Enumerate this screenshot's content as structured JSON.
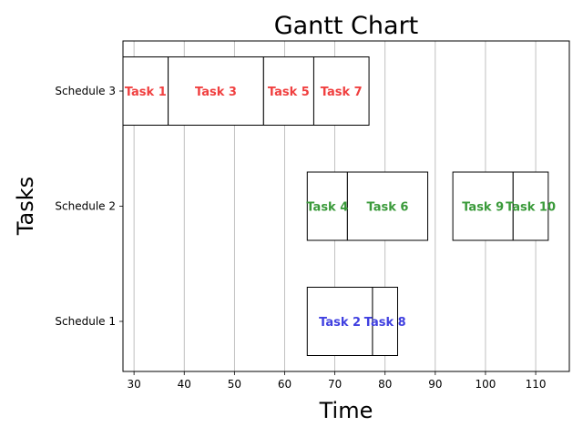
{
  "chart_data": {
    "type": "gantt",
    "title": "Gantt Chart",
    "xlabel": "Time",
    "ylabel": "Tasks",
    "xlim": [
      27.8,
      116.7
    ],
    "x_ticks": [
      30,
      40,
      50,
      60,
      70,
      80,
      90,
      100,
      110
    ],
    "grid": "vertical",
    "schedules": [
      {
        "name": "Schedule 1",
        "color": "#4040e0",
        "tasks": [
          {
            "name": "Task 2",
            "start": 64.5,
            "end": 77.5
          },
          {
            "name": "Task 8",
            "start": 77.5,
            "end": 82.5
          }
        ]
      },
      {
        "name": "Schedule 2",
        "color": "#3a9a3a",
        "tasks": [
          {
            "name": "Task 4",
            "start": 64.5,
            "end": 72.5
          },
          {
            "name": "Task 6",
            "start": 72.5,
            "end": 88.5
          },
          {
            "name": "Task 9",
            "start": 93.5,
            "end": 105.5
          },
          {
            "name": "Task 10",
            "start": 105.5,
            "end": 112.5
          }
        ]
      },
      {
        "name": "Schedule 3",
        "color": "#f04040",
        "tasks": [
          {
            "name": "Task 1",
            "start": 27.8,
            "end": 36.8
          },
          {
            "name": "Task 3",
            "start": 36.8,
            "end": 55.8
          },
          {
            "name": "Task 5",
            "start": 55.8,
            "end": 65.8
          },
          {
            "name": "Task 7",
            "start": 65.8,
            "end": 76.8
          }
        ]
      }
    ]
  }
}
